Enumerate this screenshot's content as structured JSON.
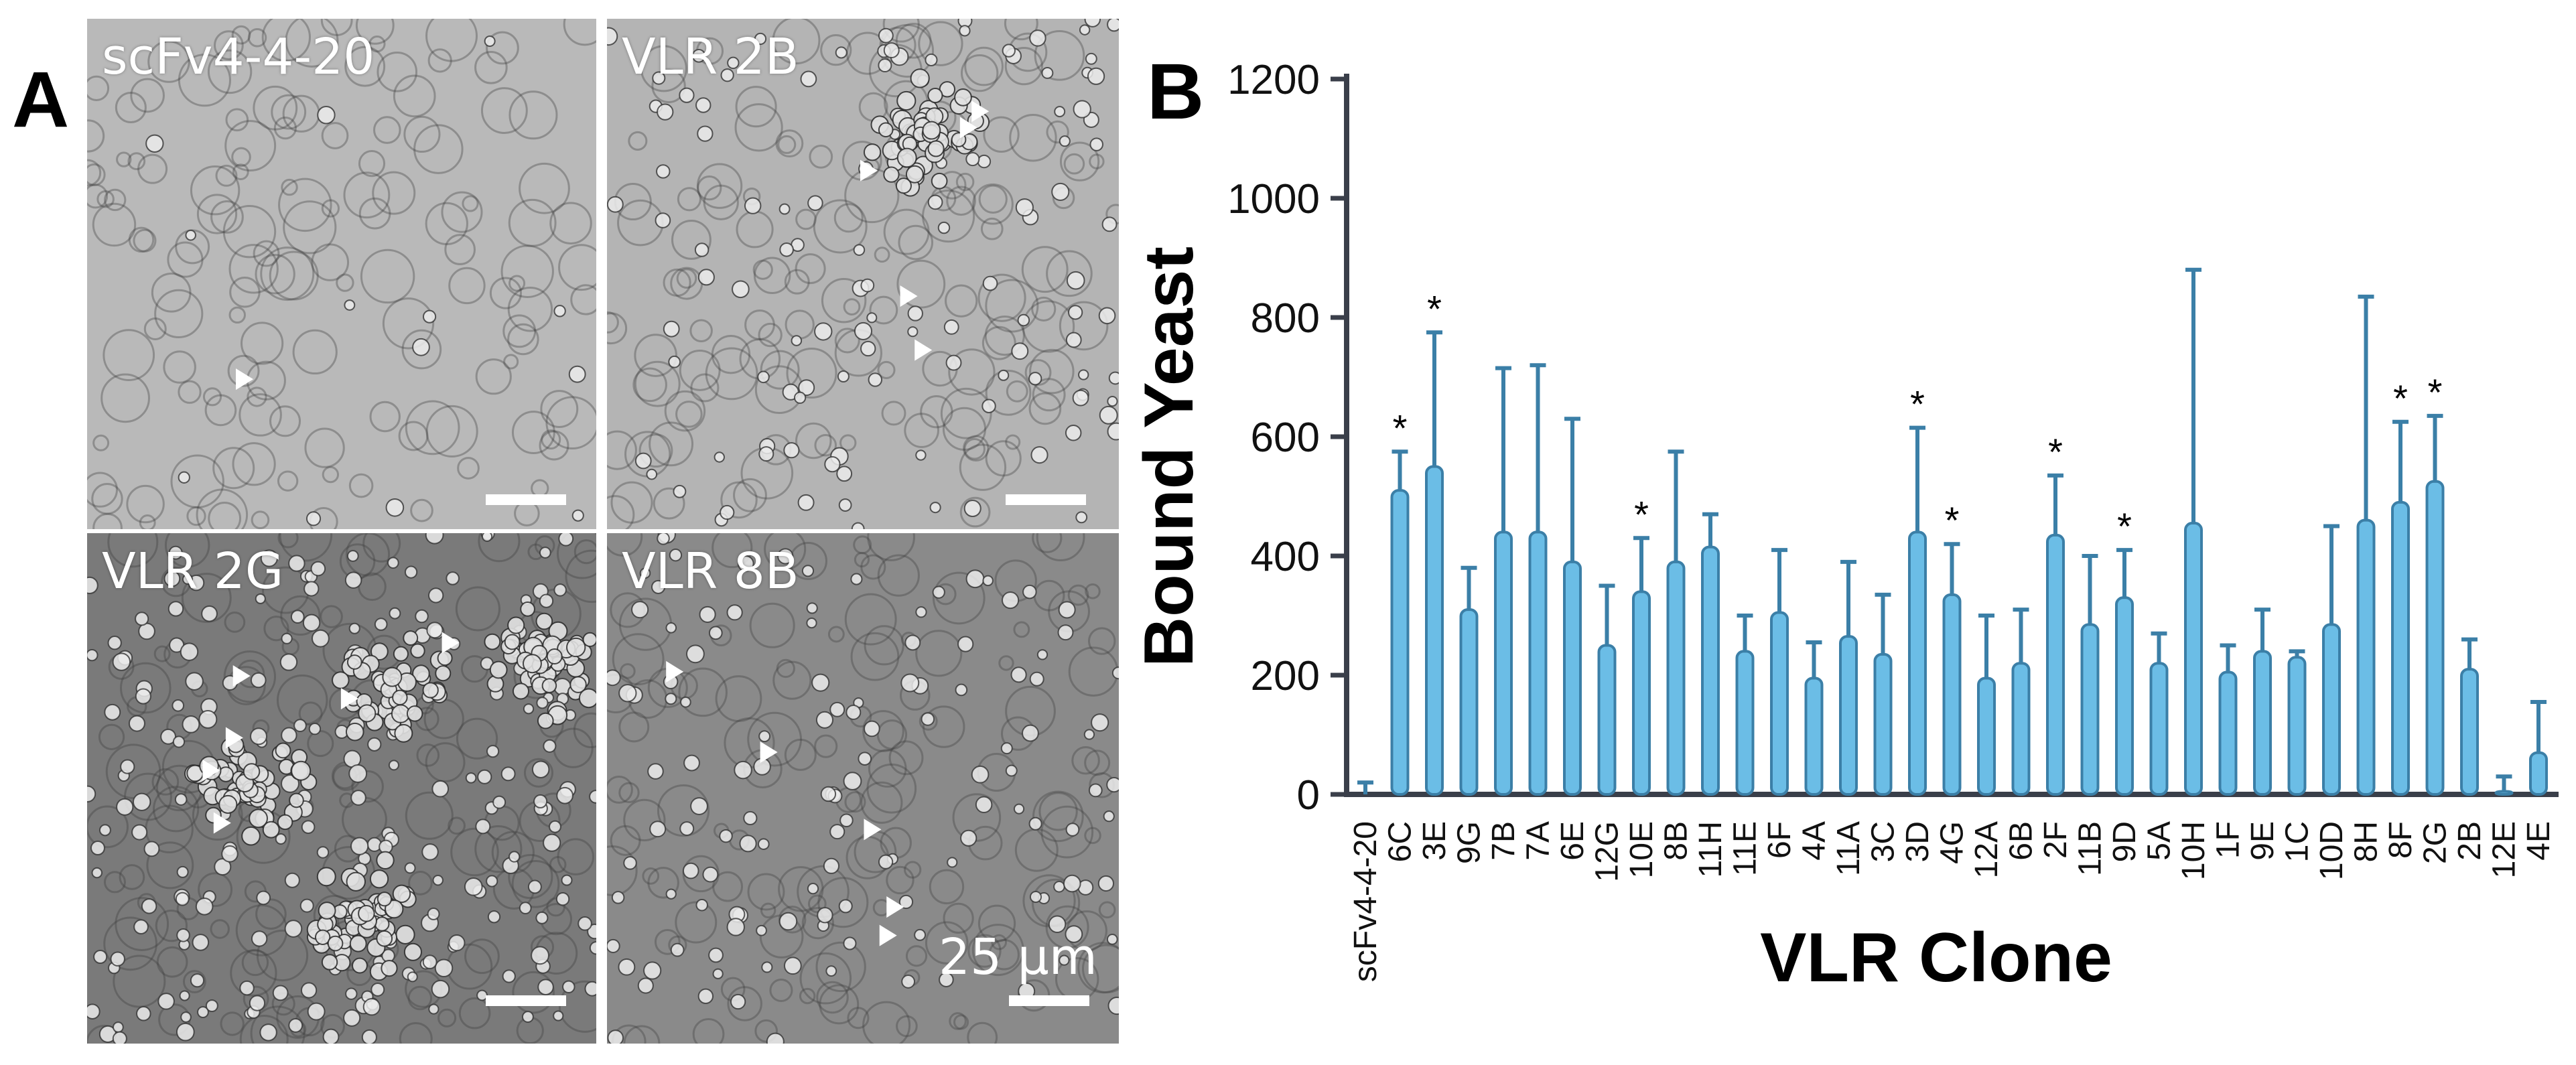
{
  "figure": {
    "panel_a_letter": "A",
    "panel_b_letter": "B"
  },
  "micrographs": [
    {
      "label": "scFv4-4-20",
      "scale_bar": true,
      "scale_label": "",
      "tone": "#b9b9b9",
      "density": 0.05,
      "clusters": [],
      "arrows": 1
    },
    {
      "label": "VLR 2B",
      "scale_bar": true,
      "scale_label": "",
      "tone": "#b4b4b4",
      "density": 0.45,
      "clusters": [
        [
          0.62,
          0.22
        ]
      ],
      "arrows": 5
    },
    {
      "label": "VLR 2G",
      "scale_bar": true,
      "scale_label": "",
      "tone": "#7a7a7a",
      "density": 0.9,
      "clusters": [
        [
          0.32,
          0.5
        ],
        [
          0.6,
          0.3
        ],
        [
          0.55,
          0.75
        ],
        [
          0.9,
          0.25
        ]
      ],
      "arrows": 6
    },
    {
      "label": "VLR 8B",
      "scale_bar": true,
      "scale_label": "25 µm",
      "tone": "#8a8a8a",
      "density": 0.5,
      "clusters": [],
      "arrows": 5
    }
  ],
  "chart_data": {
    "type": "bar",
    "ylabel": "Bound Yeast",
    "xlabel": "VLR Clone",
    "ylim": [
      0,
      1200
    ],
    "yticks": [
      "0",
      "200",
      "400",
      "600",
      "800",
      "1000",
      "1200"
    ],
    "grid": false,
    "bar_color": "#6bbde6",
    "bar_edge_color": "#3b7fa7",
    "significance_marker": "*",
    "categories": [
      "scFv4-4-20",
      "6C",
      "3E",
      "9G",
      "7B",
      "7A",
      "6E",
      "12G",
      "10E",
      "8B",
      "11H",
      "11E",
      "6F",
      "4A",
      "11A",
      "3C",
      "3D",
      "4G",
      "12A",
      "6B",
      "2F",
      "11B",
      "9D",
      "5A",
      "10H",
      "1F",
      "9E",
      "1C",
      "10D",
      "8H",
      "8F",
      "2G",
      "2B",
      "12E",
      "4E"
    ],
    "values": [
      0,
      510,
      550,
      310,
      440,
      440,
      390,
      250,
      340,
      390,
      415,
      240,
      305,
      195,
      265,
      235,
      440,
      335,
      195,
      220,
      435,
      285,
      330,
      220,
      455,
      205,
      240,
      230,
      285,
      460,
      490,
      525,
      210,
      5,
      70
    ],
    "error_upper": [
      20,
      575,
      775,
      380,
      715,
      720,
      630,
      350,
      430,
      575,
      470,
      300,
      410,
      255,
      390,
      335,
      615,
      420,
      300,
      310,
      535,
      400,
      410,
      270,
      880,
      250,
      310,
      240,
      450,
      835,
      625,
      635,
      260,
      30,
      155
    ],
    "significant": [
      false,
      true,
      true,
      false,
      false,
      false,
      false,
      false,
      true,
      false,
      false,
      false,
      false,
      false,
      false,
      false,
      true,
      true,
      false,
      false,
      true,
      false,
      true,
      false,
      false,
      false,
      false,
      false,
      false,
      false,
      true,
      true,
      false,
      false,
      false
    ]
  }
}
